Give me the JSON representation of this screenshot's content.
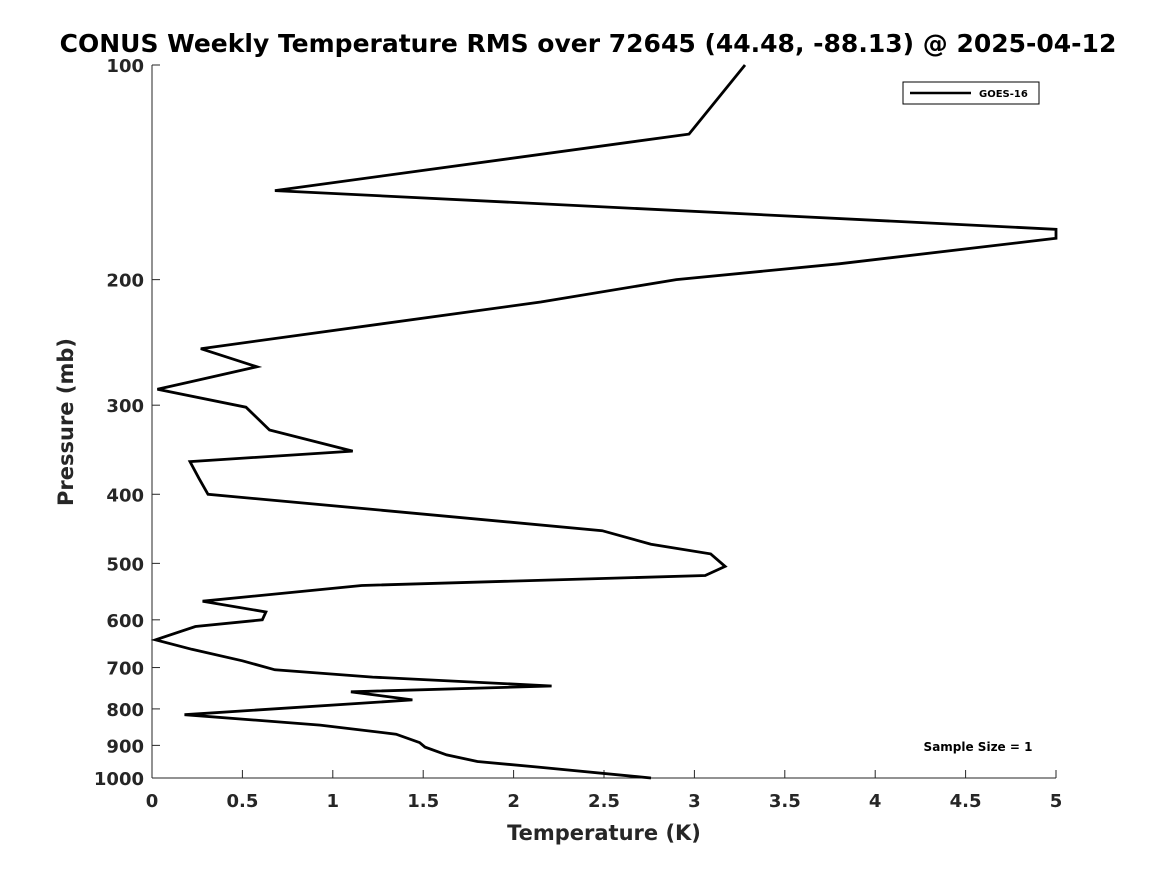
{
  "chart_data": {
    "type": "line",
    "title": "CONUS Weekly Temperature RMS over 72645 (44.48, -88.13) @ 2025-04-12",
    "xlabel": "Temperature (K)",
    "ylabel": "Pressure (mb)",
    "xlim": [
      0,
      5
    ],
    "ylim": [
      100,
      1000
    ],
    "yscale": "log",
    "y_reversed": true,
    "x_ticks": [
      "0",
      "0.5",
      "1",
      "1.5",
      "2",
      "2.5",
      "3",
      "3.5",
      "4",
      "4.5",
      "5"
    ],
    "y_ticks": [
      "100",
      "200",
      "300",
      "400",
      "500",
      "600",
      "700",
      "800",
      "900",
      "1000"
    ],
    "legend_position": "top-right",
    "grid": false,
    "annotation": "Sample Size = 1",
    "line_color": "#000000",
    "series": [
      {
        "name": "GOES-16",
        "x": [
          3.28,
          2.97,
          0.68,
          5.0,
          5.0,
          3.8,
          2.9,
          2.15,
          0.27,
          0.58,
          0.03,
          0.52,
          0.65,
          1.11,
          0.21,
          0.26,
          0.31,
          1.22,
          2.49,
          2.76,
          3.09,
          3.17,
          3.06,
          1.16,
          0.28,
          0.63,
          0.61,
          0.24,
          0.02,
          0.22,
          0.5,
          0.68,
          1.22,
          2.21,
          1.1,
          1.44,
          0.18,
          0.93,
          1.35,
          1.48,
          1.51,
          1.63,
          1.8,
          2.13,
          2.76
        ],
        "y": [
          100,
          125,
          150,
          170,
          175,
          190,
          200,
          215,
          250,
          265,
          285,
          302,
          325,
          348,
          360,
          380,
          400,
          420,
          450,
          470,
          485,
          505,
          520,
          537,
          565,
          585,
          600,
          613,
          640,
          660,
          685,
          705,
          722,
          743,
          757,
          777,
          815,
          843,
          868,
          892,
          905,
          928,
          948,
          965,
          1000
        ]
      }
    ]
  }
}
